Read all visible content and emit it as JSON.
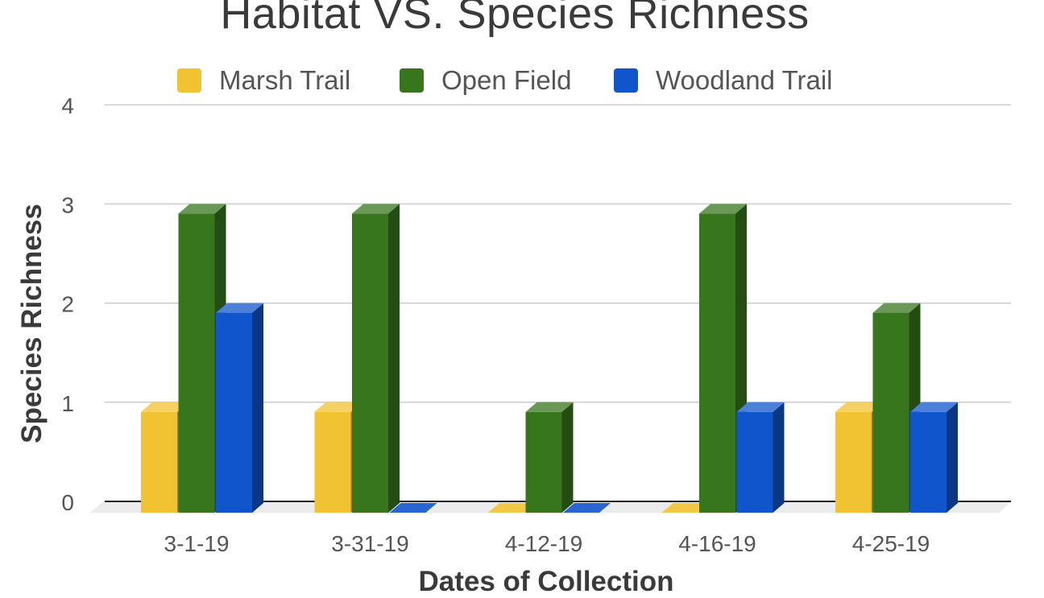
{
  "chart_data": {
    "type": "bar",
    "title": "Habitat VS. Species Richness",
    "xlabel": "Dates of Collection",
    "ylabel": "Species Richness",
    "ylim": [
      0,
      4
    ],
    "yticks": [
      0,
      1,
      2,
      3,
      4
    ],
    "grid": true,
    "legend_position": "top",
    "categories": [
      "3-1-19",
      "3-31-19",
      "4-12-19",
      "4-16-19",
      "4-25-19"
    ],
    "series": [
      {
        "name": "Marsh Trail",
        "color": "#f1c232",
        "values": [
          1,
          1,
          0,
          0,
          1
        ]
      },
      {
        "name": "Open Field",
        "color": "#38761d",
        "values": [
          3,
          3,
          1,
          3,
          2
        ]
      },
      {
        "name": "Woodland Trail",
        "color": "#1155cc",
        "values": [
          2,
          0,
          0,
          1,
          1
        ]
      }
    ]
  }
}
